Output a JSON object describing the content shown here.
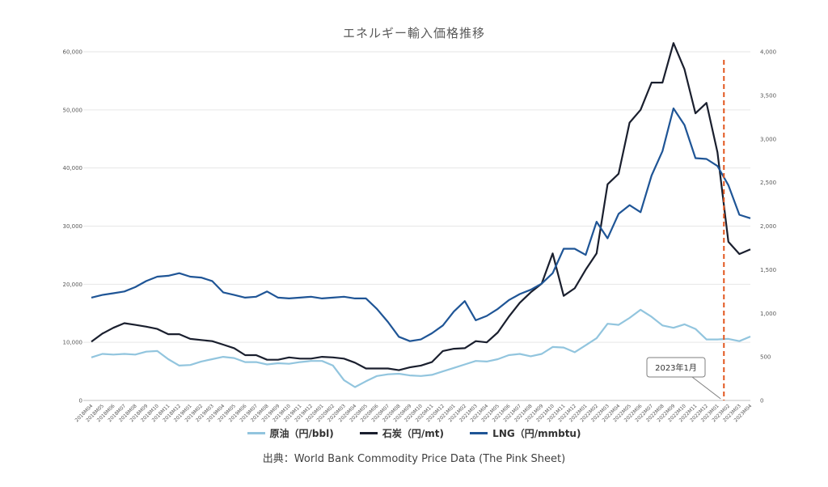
{
  "chart_data": {
    "type": "line",
    "title": "エネルギー輸入価格推移",
    "source": "出典：World Bank Commodity Price Data (The Pink Sheet)",
    "x": [
      "2018M04",
      "2018M05",
      "2018M06",
      "2018M07",
      "2018M08",
      "2018M09",
      "2018M10",
      "2018M11",
      "2018M12",
      "2019M01",
      "2019M02",
      "2019M03",
      "2019M04",
      "2019M05",
      "2019M06",
      "2019M07",
      "2019M08",
      "2019M09",
      "2019M10",
      "2019M11",
      "2019M12",
      "2020M01",
      "2020M02",
      "2020M03",
      "2020M04",
      "2020M05",
      "2020M06",
      "2020M07",
      "2020M08",
      "2020M09",
      "2020M10",
      "2020M11",
      "2020M12",
      "2021M01",
      "2021M02",
      "2021M03",
      "2021M04",
      "2021M05",
      "2021M06",
      "2021M07",
      "2021M08",
      "2021M09",
      "2021M10",
      "2021M11",
      "2021M12",
      "2022M01",
      "2022M02",
      "2022M03",
      "2022M04",
      "2022M05",
      "2022M06",
      "2022M07",
      "2022M08",
      "2022M09",
      "2022M10",
      "2022M11",
      "2022M12",
      "2023M01",
      "2023M02",
      "2023M03",
      "2023M04"
    ],
    "left_axis": {
      "ylim": [
        0,
        60000
      ],
      "ticks": [
        "0",
        "10,000",
        "20,000",
        "30,000",
        "40,000",
        "50,000",
        "60,000"
      ]
    },
    "right_axis": {
      "ylim": [
        0,
        4000
      ],
      "ticks": [
        "0",
        "500",
        "1,000",
        "1,500",
        "2,000",
        "2,500",
        "3,000",
        "3,500",
        "4,000"
      ]
    },
    "grid": true,
    "legend_position": "bottom",
    "series": [
      {
        "name": "原油（円/bbl)",
        "axis": "left",
        "color": "#92c5de",
        "values": [
          7400,
          8000,
          7900,
          8000,
          7900,
          8400,
          8500,
          7100,
          6000,
          6100,
          6700,
          7100,
          7500,
          7300,
          6600,
          6600,
          6200,
          6400,
          6300,
          6600,
          6800,
          6800,
          6000,
          3500,
          2300,
          3300,
          4200,
          4500,
          4600,
          4300,
          4200,
          4400,
          5000,
          5600,
          6200,
          6800,
          6700,
          7100,
          7800,
          8000,
          7600,
          8000,
          9200,
          9100,
          8300,
          9500,
          10700,
          13200,
          13000,
          14200,
          15600,
          14400,
          12900,
          12500,
          13100,
          12300,
          10500,
          10500,
          10600,
          10200,
          11000
        ]
      },
      {
        "name": "石炭（円/mt)",
        "axis": "left",
        "color": "#1a1f2e",
        "values": [
          10100,
          11500,
          12500,
          13300,
          13000,
          12700,
          12300,
          11400,
          11400,
          10600,
          10400,
          10200,
          9600,
          9000,
          7800,
          7800,
          7000,
          7000,
          7400,
          7200,
          7200,
          7500,
          7400,
          7200,
          6500,
          5500,
          5500,
          5500,
          5200,
          5700,
          6000,
          6600,
          8500,
          8900,
          9000,
          10200,
          10000,
          11700,
          14400,
          16800,
          18600,
          20100,
          25300,
          18000,
          19300,
          22500,
          25300,
          37200,
          39000,
          47800,
          50000,
          54700,
          54700,
          61500,
          57000,
          49400,
          51200,
          42700,
          27300,
          25200,
          26000
        ]
      },
      {
        "name": "LNG（円/mmbtu)",
        "axis": "right",
        "color": "#1f5596",
        "values": [
          1180,
          1210,
          1230,
          1250,
          1300,
          1370,
          1420,
          1430,
          1460,
          1420,
          1410,
          1370,
          1240,
          1210,
          1180,
          1190,
          1250,
          1180,
          1170,
          1180,
          1190,
          1170,
          1180,
          1190,
          1170,
          1170,
          1050,
          900,
          730,
          680,
          700,
          770,
          860,
          1020,
          1140,
          920,
          970,
          1050,
          1150,
          1220,
          1270,
          1340,
          1460,
          1740,
          1740,
          1670,
          2050,
          1860,
          2140,
          2240,
          2160,
          2580,
          2860,
          3350,
          3160,
          2780,
          2770,
          2690,
          2470,
          2130,
          2090
        ]
      }
    ],
    "annotation": {
      "label": "2023年1月",
      "x": "2023M01"
    }
  }
}
